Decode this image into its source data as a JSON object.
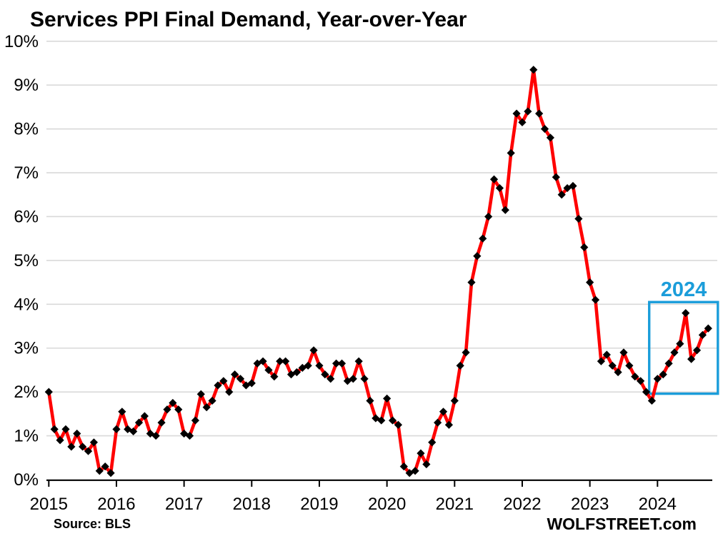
{
  "footer": {
    "source": "Source: BLS",
    "watermark": "WOLFSTREET.com"
  },
  "colors": {
    "line": "#ff0000",
    "marker": "#000000",
    "highlight": "#1b9dda",
    "gridline": "#d9d9d9",
    "axis": "#000000",
    "text": "#000000",
    "background": "#ffffff"
  },
  "chart_data": {
    "type": "line",
    "title": "Services PPI Final Demand,  Year-over-Year",
    "xlabel": "",
    "ylabel": "",
    "ylim": [
      0,
      10
    ],
    "grid": "horizontal",
    "legend": "none",
    "frequency": "monthly",
    "start_month": "2015-01",
    "end_month": "2024-10",
    "x_tick_labels": [
      "2015",
      "2016",
      "2017",
      "2018",
      "2019",
      "2020",
      "2021",
      "2022",
      "2023",
      "2024"
    ],
    "y_tick_labels": [
      "0%",
      "1%",
      "2%",
      "3%",
      "4%",
      "5%",
      "6%",
      "7%",
      "8%",
      "9%",
      "10%"
    ],
    "series": [
      {
        "name": "Services PPI Final Demand, year-over-year % change",
        "marker": "diamond",
        "values": [
          2.0,
          1.15,
          0.9,
          1.15,
          0.75,
          1.05,
          0.75,
          0.65,
          0.85,
          0.2,
          0.3,
          0.15,
          1.15,
          1.55,
          1.15,
          1.1,
          1.3,
          1.45,
          1.05,
          1.0,
          1.3,
          1.6,
          1.75,
          1.6,
          1.05,
          1.0,
          1.35,
          1.95,
          1.65,
          1.8,
          2.15,
          2.25,
          2.0,
          2.4,
          2.3,
          2.15,
          2.2,
          2.65,
          2.7,
          2.5,
          2.35,
          2.7,
          2.7,
          2.4,
          2.45,
          2.55,
          2.6,
          2.95,
          2.6,
          2.4,
          2.3,
          2.65,
          2.65,
          2.25,
          2.3,
          2.7,
          2.3,
          1.8,
          1.4,
          1.35,
          1.85,
          1.35,
          1.25,
          0.3,
          0.15,
          0.2,
          0.6,
          0.35,
          0.85,
          1.3,
          1.55,
          1.25,
          1.8,
          2.6,
          2.9,
          4.5,
          5.1,
          5.5,
          6.0,
          6.85,
          6.65,
          6.15,
          7.45,
          8.35,
          8.15,
          8.4,
          9.35,
          8.35,
          8.0,
          7.8,
          6.9,
          6.5,
          6.65,
          6.7,
          5.95,
          5.3,
          4.5,
          4.1,
          2.7,
          2.85,
          2.6,
          2.45,
          2.9,
          2.6,
          2.35,
          2.25,
          2.0,
          1.8,
          2.3,
          2.4,
          2.65,
          2.9,
          3.1,
          3.8,
          2.75,
          2.95,
          3.3,
          3.45
        ]
      }
    ],
    "highlight_box": {
      "label": "2024",
      "from_month": "2024-01",
      "to_month": "2024-10",
      "y_from": 1.96,
      "y_to": 4.05
    }
  }
}
